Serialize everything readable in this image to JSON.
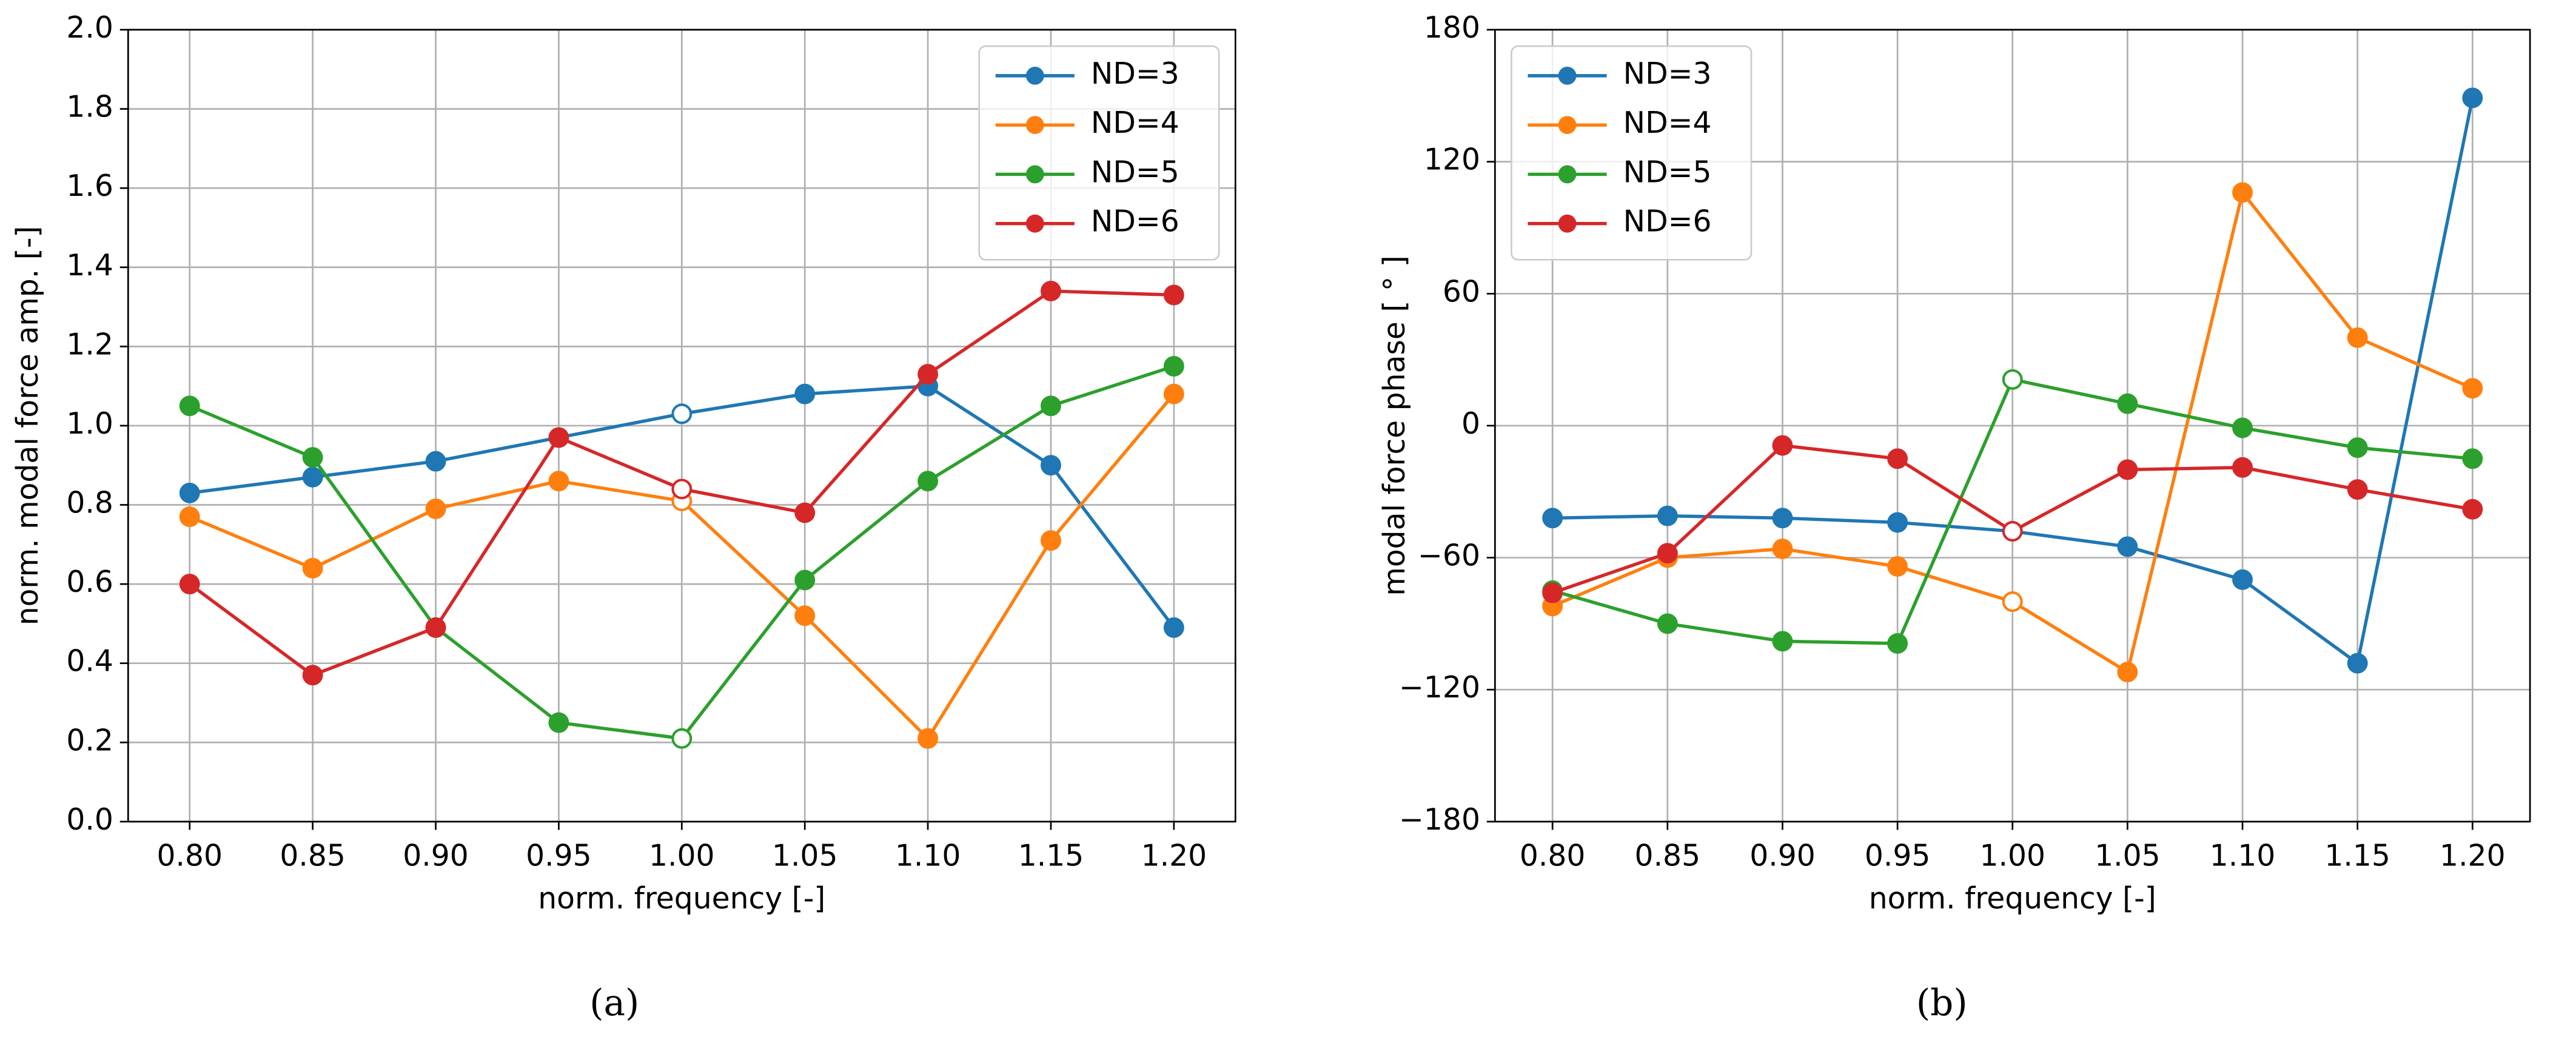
{
  "chart_data": [
    {
      "type": "line",
      "xlabel": "norm. frequency [-]",
      "ylabel": "norm. modal force amp. [-]",
      "caption": "(a)",
      "x": [
        0.8,
        0.85,
        0.9,
        0.95,
        1.0,
        1.05,
        1.1,
        1.15,
        1.2
      ],
      "xlim": [
        0.775,
        1.225
      ],
      "xticks": [
        {
          "value": 0.8,
          "label": "0.80"
        },
        {
          "value": 0.85,
          "label": "0.85"
        },
        {
          "value": 0.9,
          "label": "0.90"
        },
        {
          "value": 0.95,
          "label": "0.95"
        },
        {
          "value": 1.0,
          "label": "1.00"
        },
        {
          "value": 1.05,
          "label": "1.05"
        },
        {
          "value": 1.1,
          "label": "1.10"
        },
        {
          "value": 1.15,
          "label": "1.15"
        },
        {
          "value": 1.2,
          "label": "1.20"
        }
      ],
      "ylim": [
        0,
        2
      ],
      "yticks": [
        {
          "value": 0,
          "label": "0.0"
        },
        {
          "value": 0.2,
          "label": "0.2"
        },
        {
          "value": 0.4,
          "label": "0.4"
        },
        {
          "value": 0.6,
          "label": "0.6"
        },
        {
          "value": 0.8,
          "label": "0.8"
        },
        {
          "value": 1.0,
          "label": "1.0"
        },
        {
          "value": 1.2,
          "label": "1.2"
        },
        {
          "value": 1.4,
          "label": "1.4"
        },
        {
          "value": 1.6,
          "label": "1.6"
        },
        {
          "value": 1.8,
          "label": "1.8"
        },
        {
          "value": 2.0,
          "label": "2.0"
        }
      ],
      "grid": true,
      "legend": "upper right",
      "open_marker_x": 1.0,
      "series": [
        {
          "name": "ND=3",
          "color": "#1f77b4",
          "values": [
            0.83,
            0.87,
            0.91,
            0.97,
            1.03,
            1.08,
            1.1,
            0.9,
            0.49
          ]
        },
        {
          "name": "ND=4",
          "color": "#ff7f0e",
          "values": [
            0.77,
            0.64,
            0.79,
            0.86,
            0.81,
            0.52,
            0.21,
            0.71,
            1.08
          ]
        },
        {
          "name": "ND=5",
          "color": "#2ca02c",
          "values": [
            1.05,
            0.92,
            0.49,
            0.25,
            0.21,
            0.61,
            0.86,
            1.05,
            1.15
          ]
        },
        {
          "name": "ND=6",
          "color": "#d62728",
          "values": [
            0.6,
            0.37,
            0.49,
            0.97,
            0.84,
            0.78,
            1.13,
            1.34,
            1.33
          ]
        }
      ]
    },
    {
      "type": "line",
      "xlabel": "norm. frequency [-]",
      "ylabel": "modal force phase [ ° ]",
      "caption": "(b)",
      "x": [
        0.8,
        0.85,
        0.9,
        0.95,
        1.0,
        1.05,
        1.1,
        1.15,
        1.2
      ],
      "xlim": [
        0.775,
        1.225
      ],
      "xticks": [
        {
          "value": 0.8,
          "label": "0.80"
        },
        {
          "value": 0.85,
          "label": "0.85"
        },
        {
          "value": 0.9,
          "label": "0.90"
        },
        {
          "value": 0.95,
          "label": "0.95"
        },
        {
          "value": 1.0,
          "label": "1.00"
        },
        {
          "value": 1.05,
          "label": "1.05"
        },
        {
          "value": 1.1,
          "label": "1.10"
        },
        {
          "value": 1.15,
          "label": "1.15"
        },
        {
          "value": 1.2,
          "label": "1.20"
        }
      ],
      "ylim": [
        -180,
        180
      ],
      "yticks": [
        {
          "value": -180,
          "label": "−180"
        },
        {
          "value": -120,
          "label": "−120"
        },
        {
          "value": -60,
          "label": "−60"
        },
        0,
        60,
        120,
        180
      ],
      "grid": true,
      "legend": "upper left",
      "open_marker_x": 1.0,
      "series": [
        {
          "name": "ND=3",
          "color": "#1f77b4",
          "values": [
            -42,
            -41,
            -42,
            -44,
            -48,
            -55,
            -70,
            -108,
            149
          ]
        },
        {
          "name": "ND=4",
          "color": "#ff7f0e",
          "values": [
            -82,
            -60,
            -56,
            -64,
            -80,
            -112,
            106,
            40,
            17
          ]
        },
        {
          "name": "ND=5",
          "color": "#2ca02c",
          "values": [
            -75,
            -90,
            -98,
            -99,
            21,
            10,
            -1,
            -10,
            -15
          ]
        },
        {
          "name": "ND=6",
          "color": "#d62728",
          "values": [
            -76,
            -58,
            -9,
            -15,
            -48,
            -20,
            -19,
            -29,
            -38
          ]
        }
      ]
    }
  ]
}
